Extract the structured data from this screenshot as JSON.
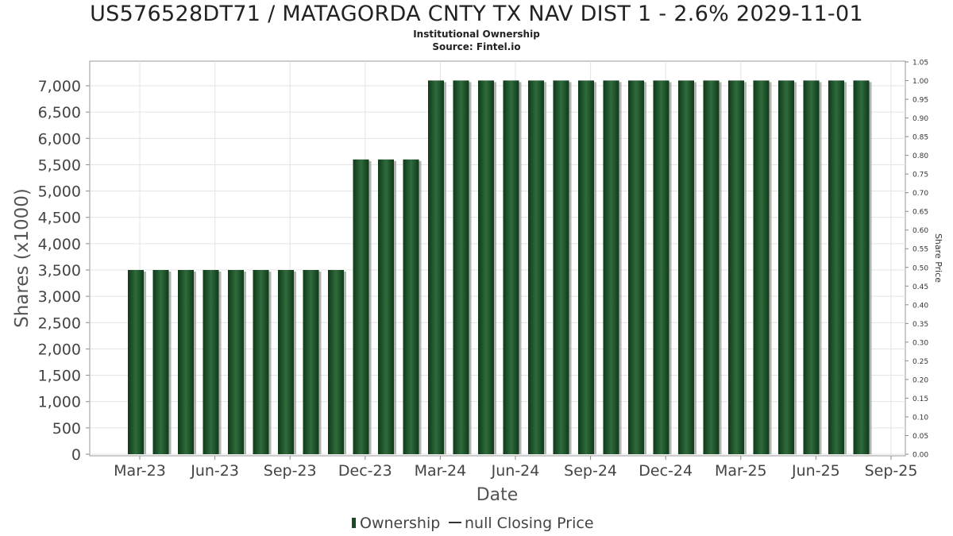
{
  "title": "US576528DT71 / MATAGORDA CNTY TX NAV DIST 1 - 2.6% 2029-11-01",
  "subtitle_line1": "Institutional Ownership",
  "subtitle_line2": "Source: Fintel.io",
  "chart_data": {
    "type": "bar",
    "title": "US576528DT71 / MATAGORDA CNTY TX NAV DIST 1 - 2.6% 2029-11-01",
    "xlabel": "Date",
    "ylabel": "Shares (x1000)",
    "y2label": "Share Price",
    "ylim": [
      0,
      7200
    ],
    "y2lim": [
      0,
      1.05
    ],
    "yticks": [
      0,
      500,
      1000,
      1500,
      2000,
      2500,
      3000,
      3500,
      4000,
      4500,
      5000,
      5500,
      6000,
      6500,
      7000
    ],
    "ytick_labels": [
      "0",
      "500",
      "1,000",
      "1,500",
      "2,000",
      "2,500",
      "3,000",
      "3,500",
      "4,000",
      "4,500",
      "5,000",
      "5,500",
      "6,000",
      "6,500",
      "7,000"
    ],
    "y2ticks": [
      "0.00",
      "0.05",
      "0.10",
      "0.15",
      "0.20",
      "0.25",
      "0.30",
      "0.35",
      "0.40",
      "0.45",
      "0.50",
      "0.55",
      "0.60",
      "0.65",
      "0.70",
      "0.75",
      "0.80",
      "0.85",
      "0.90",
      "0.95",
      "1.00",
      "1.05"
    ],
    "xticks": [
      "Mar-23",
      "Jun-23",
      "Sep-23",
      "Dec-23",
      "Mar-24",
      "Jun-24",
      "Sep-24",
      "Dec-24",
      "Mar-25",
      "Jun-25",
      "Sep-25"
    ],
    "grid": true,
    "legend_position": "bottom-center",
    "series": [
      {
        "name": "Ownership",
        "type": "bar",
        "color": "#1a4a26",
        "values": [
          3500,
          3500,
          3500,
          3500,
          3500,
          3500,
          3500,
          3500,
          3500,
          5600,
          5600,
          5600,
          7100,
          7100,
          7100,
          7100,
          7100,
          7100,
          7100,
          7100,
          7100,
          7100,
          7100,
          7100,
          7100,
          7100,
          7100,
          7100,
          7100,
          7100
        ]
      },
      {
        "name": "null Closing Price",
        "type": "line",
        "color": "#333333",
        "values": []
      }
    ]
  },
  "legend": {
    "ownership_label": "Ownership",
    "price_label": "null Closing Price"
  }
}
